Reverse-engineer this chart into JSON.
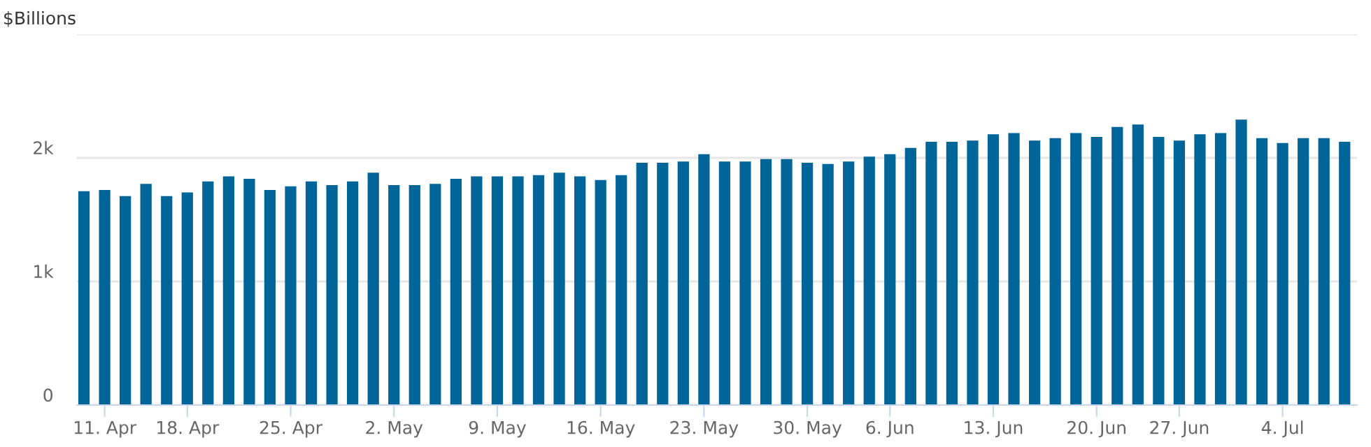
{
  "chart_data": {
    "type": "bar",
    "ylabel": "$Billions",
    "color": "#00669a",
    "categories": [
      null,
      "11. Apr",
      null,
      null,
      null,
      "18. Apr",
      null,
      null,
      null,
      null,
      "25. Apr",
      null,
      null,
      null,
      null,
      "2. May",
      null,
      null,
      null,
      null,
      "9. May",
      null,
      null,
      null,
      null,
      "16. May",
      null,
      null,
      null,
      null,
      "23. May",
      null,
      null,
      null,
      null,
      "30. May",
      null,
      null,
      null,
      "6. Jun",
      null,
      null,
      null,
      null,
      "13. Jun",
      null,
      null,
      null,
      null,
      "20. Jun",
      null,
      null,
      null,
      "27. Jun",
      null,
      null,
      null,
      null,
      "4. Jul",
      null,
      null,
      null
    ],
    "values": [
      1730,
      1740,
      1690,
      1790,
      1690,
      1720,
      1810,
      1850,
      1830,
      1740,
      1770,
      1810,
      1780,
      1810,
      1880,
      1780,
      1780,
      1790,
      1830,
      1850,
      1850,
      1850,
      1860,
      1880,
      1850,
      1820,
      1860,
      1960,
      1960,
      1970,
      2030,
      1970,
      1970,
      1990,
      1990,
      1960,
      1950,
      1970,
      2010,
      2030,
      2080,
      2130,
      2130,
      2140,
      2190,
      2200,
      2140,
      2160,
      2200,
      2170,
      2250,
      2270,
      2170,
      2140,
      2190,
      2200,
      2310,
      2160,
      2120,
      2160,
      2160,
      2130
    ],
    "ylim": [
      0,
      3000
    ],
    "yticks": [
      0,
      {
        "value": 1000,
        "label": "1k"
      },
      {
        "value": 2000,
        "label": "2k"
      },
      {
        "value": 3000,
        "label": null
      }
    ],
    "grid": "y",
    "legend": false
  }
}
